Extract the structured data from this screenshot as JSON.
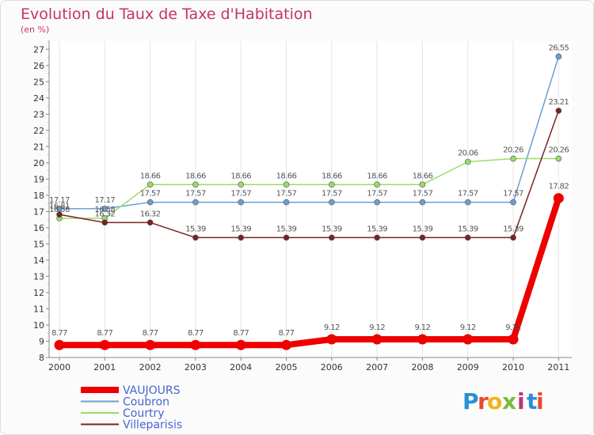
{
  "chart_data": {
    "type": "line",
    "title": "Evolution du Taux de Taxe d'Habitation",
    "subtitle": "(en %)",
    "xlabel": "",
    "ylabel": "(en %)",
    "categories": [
      "2000",
      "2001",
      "2002",
      "2003",
      "2004",
      "2005",
      "2006",
      "2007",
      "2008",
      "2009",
      "2010",
      "2011"
    ],
    "ylim": [
      8,
      27.5
    ],
    "yticks": [
      8,
      9,
      10,
      11,
      12,
      13,
      14,
      15,
      16,
      17,
      18,
      19,
      20,
      21,
      22,
      23,
      24,
      25,
      26,
      27
    ],
    "grid": "vertical",
    "legend": "bottom-left",
    "series": [
      {
        "name": "VAUJOURS",
        "color": "#ee0000",
        "labels": [
          "8.77",
          "8.77",
          "8.77",
          "8.77",
          "8.77",
          "8.77",
          "9.12",
          "9.12",
          "9.12",
          "9.12",
          "9.12",
          "17.82"
        ],
        "values": [
          8.77,
          8.77,
          8.77,
          8.77,
          8.77,
          8.77,
          9.12,
          9.12,
          9.12,
          9.12,
          9.12,
          17.82
        ]
      },
      {
        "name": "Coubron",
        "color": "#6a9ed4",
        "labels": [
          "17.17",
          "17.17",
          "17.57",
          "17.57",
          "17.57",
          "17.57",
          "17.57",
          "17.57",
          "17.57",
          "17.57",
          "17.57",
          "26.55"
        ],
        "values": [
          17.17,
          17.17,
          17.57,
          17.57,
          17.57,
          17.57,
          17.57,
          17.57,
          17.57,
          17.57,
          17.57,
          26.55
        ]
      },
      {
        "name": "Courtry",
        "color": "#99dd66",
        "labels": [
          "16.58",
          "16.58",
          "18.66",
          "18.66",
          "18.66",
          "18.66",
          "18.66",
          "18.66",
          "18.66",
          "20.06",
          "20.26",
          "20.26"
        ],
        "values": [
          16.58,
          16.58,
          18.66,
          18.66,
          18.66,
          18.66,
          18.66,
          18.66,
          18.66,
          20.06,
          20.26,
          20.26
        ]
      },
      {
        "name": "Villeparisis",
        "color": "#7a2222",
        "labels": [
          "16.81",
          "16.32",
          "16.32",
          "15.39",
          "15.39",
          "15.39",
          "15.39",
          "15.39",
          "15.39",
          "15.39",
          "15.39",
          "23.21"
        ],
        "values": [
          16.81,
          16.32,
          16.32,
          15.39,
          15.39,
          15.39,
          15.39,
          15.39,
          15.39,
          15.39,
          15.39,
          23.21
        ]
      }
    ]
  },
  "logo": {
    "text": "Proxiti",
    "letters": [
      "P",
      "r",
      "o",
      "x",
      "i",
      "t",
      "i"
    ],
    "colors": [
      "#2a8fd6",
      "#e84a2c",
      "#f2b417",
      "#7ab93e",
      "#c2336c",
      "#2a8fd6",
      "#e84a2c"
    ]
  }
}
